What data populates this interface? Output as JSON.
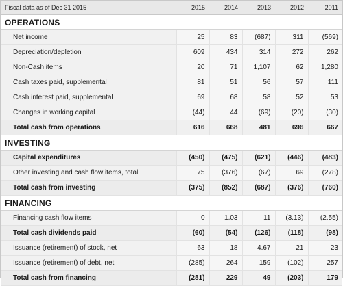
{
  "header": {
    "label": "Fiscal data as of Dec 31 2015",
    "years": [
      "2015",
      "2014",
      "2013",
      "2012",
      "2011"
    ]
  },
  "sections": [
    {
      "title": "OPERATIONS",
      "rows": [
        {
          "label": "Net income",
          "values": [
            "25",
            "83",
            "(687)",
            "311",
            "(569)"
          ],
          "total": false
        },
        {
          "label": "Depreciation/depletion",
          "values": [
            "609",
            "434",
            "314",
            "272",
            "262"
          ],
          "total": false
        },
        {
          "label": "Non-Cash items",
          "values": [
            "20",
            "71",
            "1,107",
            "62",
            "1,280"
          ],
          "total": false
        },
        {
          "label": "Cash taxes paid, supplemental",
          "values": [
            "81",
            "51",
            "56",
            "57",
            "111"
          ],
          "total": false
        },
        {
          "label": "Cash interest paid, supplemental",
          "values": [
            "69",
            "68",
            "58",
            "52",
            "53"
          ],
          "total": false
        },
        {
          "label": "Changes in working capital",
          "values": [
            "(44)",
            "44",
            "(69)",
            "(20)",
            "(30)"
          ],
          "total": false
        },
        {
          "label": "Total cash from operations",
          "values": [
            "616",
            "668",
            "481",
            "696",
            "667"
          ],
          "total": true
        }
      ]
    },
    {
      "title": "INVESTING",
      "rows": [
        {
          "label": "Capital expenditures",
          "values": [
            "(450)",
            "(475)",
            "(621)",
            "(446)",
            "(483)"
          ],
          "total": true
        },
        {
          "label": "Other investing and cash flow items, total",
          "values": [
            "75",
            "(376)",
            "(67)",
            "69",
            "(278)"
          ],
          "total": false
        },
        {
          "label": "Total cash from investing",
          "values": [
            "(375)",
            "(852)",
            "(687)",
            "(376)",
            "(760)"
          ],
          "total": true
        }
      ]
    },
    {
      "title": "FINANCING",
      "rows": [
        {
          "label": "Financing cash flow items",
          "values": [
            "0",
            "1.03",
            "11",
            "(3.13)",
            "(2.55)"
          ],
          "total": false
        },
        {
          "label": "Total cash dividends paid",
          "values": [
            "(60)",
            "(54)",
            "(126)",
            "(118)",
            "(98)"
          ],
          "total": true
        },
        {
          "label": "Issuance (retirement) of stock, net",
          "values": [
            "63",
            "18",
            "4.67",
            "21",
            "23"
          ],
          "total": false
        },
        {
          "label": "Issuance (retirement) of debt, net",
          "values": [
            "(285)",
            "264",
            "159",
            "(102)",
            "257"
          ],
          "total": false
        },
        {
          "label": "Total cash from financing",
          "values": [
            "(281)",
            "229",
            "49",
            "(203)",
            "179"
          ],
          "total": true
        }
      ]
    }
  ]
}
